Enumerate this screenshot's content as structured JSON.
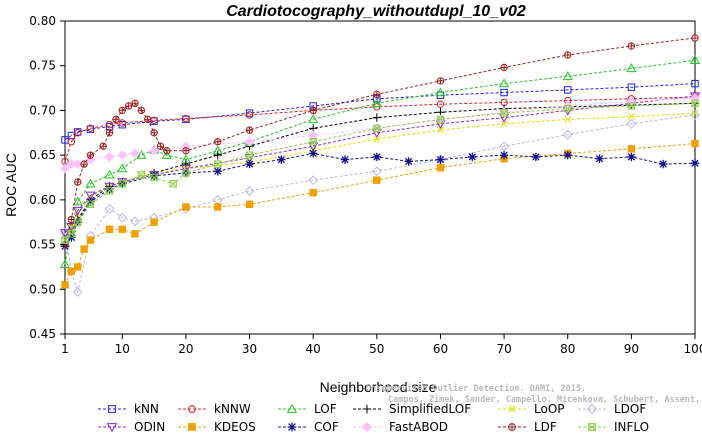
{
  "chart_data": {
    "type": "line",
    "title": "Cardiotocography_withoutdupl_10_v02",
    "xlabel": "Neighborhood size",
    "ylabel": "ROC AUC",
    "xlim": [
      1,
      100
    ],
    "ylim": [
      0.45,
      0.8
    ],
    "x_ticks": [
      "1",
      "10",
      "20",
      "30",
      "40",
      "50",
      "60",
      "70",
      "80",
      "90",
      "100"
    ],
    "y_ticks": [
      "0.45",
      "0.50",
      "0.55",
      "0.60",
      "0.65",
      "0.70",
      "0.75",
      "0.80"
    ],
    "grid": false,
    "legend_position": "bottom",
    "watermark": [
      "Unsupervised Outlier Detection. DAMI, 2015.",
      "Campos, Zimek, Sander, Campello, Micenkova, Schubert, Assent, Houle"
    ],
    "series": [
      {
        "name": "kNN",
        "marker": "square",
        "color": "#2020e8",
        "x": [
          1,
          2,
          3,
          5,
          8,
          10,
          15,
          20,
          30,
          40,
          50,
          60,
          70,
          80,
          90,
          100
        ],
        "y": [
          0.667,
          0.672,
          0.676,
          0.679,
          0.682,
          0.684,
          0.688,
          0.69,
          0.697,
          0.705,
          0.713,
          0.717,
          0.72,
          0.723,
          0.726,
          0.73
        ]
      },
      {
        "name": "kNNW",
        "marker": "circle",
        "color": "#d82020",
        "x": [
          1,
          2,
          3,
          5,
          8,
          10,
          15,
          20,
          30,
          40,
          50,
          60,
          70,
          80,
          90,
          100
        ],
        "y": [
          0.643,
          0.665,
          0.675,
          0.68,
          0.684,
          0.686,
          0.689,
          0.691,
          0.695,
          0.7,
          0.704,
          0.707,
          0.709,
          0.711,
          0.713,
          0.715
        ]
      },
      {
        "name": "LOF",
        "marker": "triangle-up",
        "color": "#20c820",
        "x": [
          1,
          2,
          3,
          5,
          8,
          10,
          13,
          15,
          17,
          20,
          25,
          30,
          40,
          50,
          60,
          70,
          80,
          90,
          100
        ],
        "y": [
          0.528,
          0.568,
          0.598,
          0.618,
          0.628,
          0.635,
          0.65,
          0.656,
          0.65,
          0.645,
          0.655,
          0.665,
          0.69,
          0.708,
          0.72,
          0.73,
          0.738,
          0.747,
          0.756
        ]
      },
      {
        "name": "SimplifiedLOF",
        "marker": "plus",
        "color": "#000000",
        "x": [
          1,
          2,
          3,
          5,
          8,
          10,
          15,
          20,
          25,
          30,
          40,
          50,
          60,
          70,
          80,
          90,
          100
        ],
        "y": [
          0.548,
          0.56,
          0.578,
          0.6,
          0.615,
          0.62,
          0.63,
          0.64,
          0.65,
          0.66,
          0.68,
          0.692,
          0.698,
          0.702,
          0.704,
          0.706,
          0.708
        ]
      },
      {
        "name": "LoOP",
        "marker": "x",
        "color": "#e0e000",
        "x": [
          1,
          2,
          3,
          5,
          8,
          10,
          15,
          20,
          30,
          40,
          50,
          60,
          70,
          80,
          90,
          100
        ],
        "y": [
          0.555,
          0.57,
          0.585,
          0.603,
          0.615,
          0.62,
          0.63,
          0.635,
          0.642,
          0.655,
          0.668,
          0.678,
          0.685,
          0.69,
          0.693,
          0.697
        ]
      },
      {
        "name": "LDOF",
        "marker": "diamond",
        "color": "#b8b8e8",
        "x": [
          1,
          2,
          3,
          5,
          8,
          10,
          12,
          15,
          20,
          25,
          30,
          40,
          50,
          60,
          70,
          80,
          90,
          100
        ],
        "y": [
          0.563,
          0.52,
          0.497,
          0.56,
          0.59,
          0.58,
          0.576,
          0.58,
          0.59,
          0.6,
          0.61,
          0.622,
          0.632,
          0.645,
          0.66,
          0.673,
          0.685,
          0.695
        ]
      },
      {
        "name": "ODIN",
        "marker": "triangle-down",
        "color": "#9020d0",
        "x": [
          1,
          2,
          3,
          5,
          8,
          10,
          15,
          20,
          30,
          40,
          50,
          60,
          70,
          80,
          90,
          100
        ],
        "y": [
          0.563,
          0.57,
          0.588,
          0.605,
          0.615,
          0.62,
          0.628,
          0.635,
          0.647,
          0.66,
          0.675,
          0.685,
          0.692,
          0.7,
          0.708,
          0.716
        ]
      },
      {
        "name": "KDEOS",
        "marker": "square-filled",
        "color": "#f0a000",
        "x": [
          1,
          2,
          3,
          4,
          5,
          8,
          10,
          12,
          15,
          20,
          25,
          30,
          40,
          50,
          60,
          70,
          80,
          90,
          100
        ],
        "y": [
          0.505,
          0.52,
          0.525,
          0.545,
          0.555,
          0.567,
          0.567,
          0.562,
          0.575,
          0.592,
          0.592,
          0.595,
          0.608,
          0.622,
          0.636,
          0.646,
          0.652,
          0.657,
          0.663
        ]
      },
      {
        "name": "COF",
        "marker": "asterisk",
        "color": "#101090",
        "x": [
          1,
          2,
          3,
          5,
          8,
          10,
          15,
          20,
          25,
          30,
          35,
          40,
          45,
          50,
          55,
          60,
          65,
          70,
          75,
          80,
          85,
          90,
          95,
          100
        ],
        "y": [
          0.548,
          0.558,
          0.575,
          0.598,
          0.612,
          0.618,
          0.627,
          0.63,
          0.632,
          0.64,
          0.645,
          0.652,
          0.645,
          0.648,
          0.643,
          0.645,
          0.648,
          0.65,
          0.648,
          0.65,
          0.646,
          0.648,
          0.64,
          0.641
        ]
      },
      {
        "name": "FastABOD",
        "marker": "diamond-filled",
        "color": "#ffc0ff",
        "x": [
          1,
          2,
          3,
          5,
          8,
          10,
          12,
          15,
          20,
          30,
          40,
          50,
          60,
          70,
          80,
          90,
          100
        ],
        "y": [
          0.635,
          0.64,
          0.64,
          0.645,
          0.648,
          0.65,
          0.652,
          0.655,
          0.66,
          0.665,
          0.672,
          0.68,
          0.69,
          0.698,
          0.705,
          0.71,
          0.714
        ]
      },
      {
        "name": "LDF",
        "marker": "circle-plus",
        "color": "#a02020",
        "x": [
          1,
          2,
          3,
          4,
          5,
          7,
          8,
          9,
          10,
          11,
          12,
          13,
          14,
          15,
          16,
          17,
          20,
          25,
          30,
          40,
          50,
          60,
          70,
          80,
          90,
          100
        ],
        "y": [
          0.55,
          0.578,
          0.62,
          0.64,
          0.65,
          0.66,
          0.675,
          0.69,
          0.7,
          0.705,
          0.708,
          0.7,
          0.69,
          0.675,
          0.66,
          0.655,
          0.655,
          0.665,
          0.678,
          0.7,
          0.718,
          0.733,
          0.748,
          0.762,
          0.772,
          0.781
        ]
      },
      {
        "name": "INFLO",
        "marker": "square-x",
        "color": "#88d040",
        "x": [
          1,
          2,
          3,
          5,
          8,
          10,
          13,
          15,
          18,
          20,
          25,
          30,
          40,
          50,
          60,
          70,
          80,
          90,
          100
        ],
        "y": [
          0.555,
          0.562,
          0.575,
          0.595,
          0.61,
          0.618,
          0.628,
          0.625,
          0.618,
          0.63,
          0.64,
          0.65,
          0.665,
          0.68,
          0.69,
          0.697,
          0.702,
          0.705,
          0.708
        ]
      }
    ]
  }
}
